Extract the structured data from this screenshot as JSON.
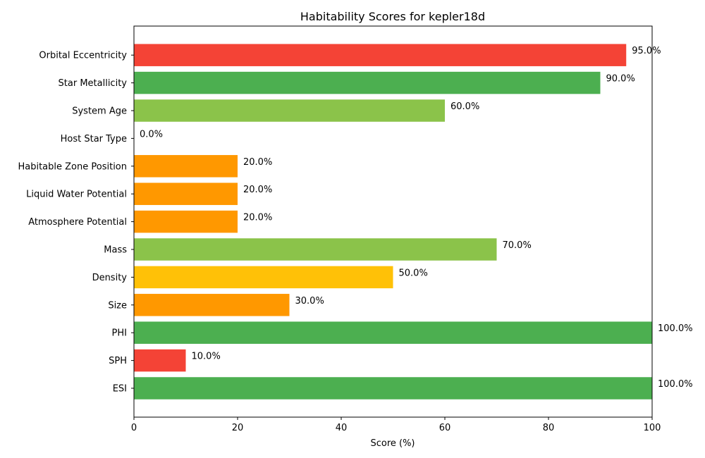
{
  "chart_data": {
    "type": "bar",
    "orientation": "horizontal",
    "title": "Habitability Scores for kepler18d",
    "xlabel": "Score (%)",
    "ylabel": "",
    "xlim": [
      0,
      100
    ],
    "xticks": [
      0,
      20,
      40,
      60,
      80,
      100
    ],
    "grid": false,
    "categories": [
      "ESI",
      "SPH",
      "PHI",
      "Size",
      "Density",
      "Mass",
      "Atmosphere Potential",
      "Liquid Water Potential",
      "Habitable Zone Position",
      "Host Star Type",
      "System Age",
      "Star Metallicity",
      "Orbital Eccentricity"
    ],
    "values": [
      100,
      10,
      100,
      30,
      50,
      70,
      20,
      20,
      20,
      0,
      60,
      90,
      95
    ],
    "value_labels": [
      "100.0%",
      "10.0%",
      "100.0%",
      "30.0%",
      "50.0%",
      "70.0%",
      "20.0%",
      "20.0%",
      "20.0%",
      "0.0%",
      "60.0%",
      "90.0%",
      "95.0%"
    ],
    "colors": [
      "#4caf50",
      "#f44336",
      "#4caf50",
      "#ff9800",
      "#ffc107",
      "#8bc34a",
      "#ff9800",
      "#ff9800",
      "#ff9800",
      "#f44336",
      "#8bc34a",
      "#4caf50",
      "#f44336"
    ]
  }
}
